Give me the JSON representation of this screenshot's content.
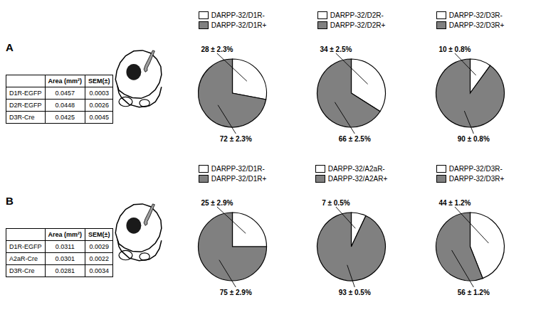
{
  "chart_data": [
    {
      "type": "table",
      "title": "A",
      "categories": [
        "D1R-EGFP",
        "D2R-EGFP",
        "D3R-Cre"
      ],
      "series": [
        {
          "name": "Area (mm²)",
          "values": [
            0.0457,
            0.0448,
            0.0425
          ]
        },
        {
          "name": "SEM(±)",
          "values": [
            0.0003,
            0.0026,
            0.0045
          ]
        }
      ]
    },
    {
      "type": "pie",
      "categories": [
        "DARPP-32/D1R-",
        "DARPP-32/D1R+"
      ],
      "values": [
        28,
        72
      ],
      "value_labels": [
        "28 ± 2.3%",
        "72 ± 2.3%"
      ],
      "colors": [
        "#ffffff",
        "#808080"
      ],
      "legend": "top",
      "data_labels": true
    },
    {
      "type": "pie",
      "categories": [
        "DARPP-32/D2R-",
        "DARPP-32/D2R+"
      ],
      "values": [
        34,
        66
      ],
      "value_labels": [
        "34 ± 2.5%",
        "66 ± 2.5%"
      ],
      "colors": [
        "#ffffff",
        "#808080"
      ],
      "legend": "top",
      "data_labels": true
    },
    {
      "type": "pie",
      "categories": [
        "DARPP-32/D3R-",
        "DARPP-32/D3R+"
      ],
      "values": [
        10,
        90
      ],
      "value_labels": [
        "10 ± 0.8%",
        "90 ± 0.8%"
      ],
      "colors": [
        "#ffffff",
        "#808080"
      ],
      "legend": "top",
      "data_labels": true
    },
    {
      "type": "table",
      "title": "B",
      "categories": [
        "D1R-EGFP",
        "A2aR-Cre",
        "D3R-Cre"
      ],
      "series": [
        {
          "name": "Area (mm²)",
          "values": [
            0.0311,
            0.0301,
            0.0281
          ]
        },
        {
          "name": "SEM(±)",
          "values": [
            0.0029,
            0.0022,
            0.0034
          ]
        }
      ]
    },
    {
      "type": "pie",
      "categories": [
        "DARPP-32/D1R-",
        "DARPP-32/D1R+"
      ],
      "values": [
        25,
        75
      ],
      "value_labels": [
        "25 ± 2.9%",
        "75 ± 2.9%"
      ],
      "colors": [
        "#ffffff",
        "#808080"
      ],
      "legend": "top",
      "data_labels": true
    },
    {
      "type": "pie",
      "categories": [
        "DARPP-32/A2aR-",
        "DARPP-32/A2AR+"
      ],
      "values": [
        7,
        93
      ],
      "value_labels": [
        "7 ± 0.5%",
        "93 ± 0.5%"
      ],
      "colors": [
        "#ffffff",
        "#808080"
      ],
      "legend": "top",
      "data_labels": true
    },
    {
      "type": "pie",
      "categories": [
        "DARPP-32/D3R-",
        "DARPP-32/D3R+"
      ],
      "values": [
        44,
        56
      ],
      "value_labels": [
        "44 ± 1.2%",
        "56 ± 1.2%"
      ],
      "colors": [
        "#ffffff",
        "#808080"
      ],
      "legend": "top",
      "data_labels": true
    }
  ]
}
